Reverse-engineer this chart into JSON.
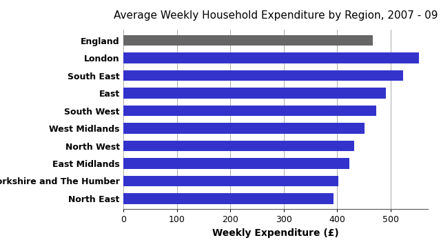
{
  "title": "Average Weekly Household Expenditure by Region, 2007 - 09",
  "xlabel": "Weekly Expenditure (£)",
  "regions": [
    "England",
    "London",
    "South East",
    "East",
    "South West",
    "West Midlands",
    "North West",
    "East Midlands",
    "Yorkshire and The Humber",
    "North East"
  ],
  "values": [
    467,
    554,
    524,
    492,
    474,
    451,
    432,
    423,
    403,
    393
  ],
  "bar_colors": [
    "#666666",
    "#3333cc",
    "#3333cc",
    "#3333cc",
    "#3333cc",
    "#3333cc",
    "#3333cc",
    "#3333cc",
    "#3333cc",
    "#3333cc"
  ],
  "xlim": [
    0,
    570
  ],
  "xticks": [
    0,
    100,
    200,
    300,
    400,
    500
  ],
  "background_color": "#ffffff",
  "title_fontsize": 11,
  "label_fontsize": 10,
  "tick_fontsize": 9,
  "bar_height": 0.6
}
